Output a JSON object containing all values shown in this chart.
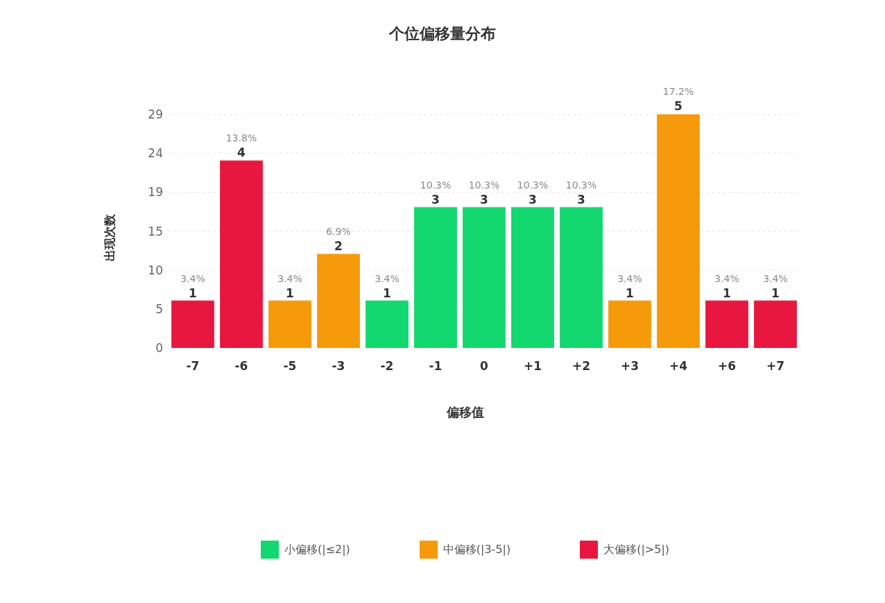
{
  "chart_data": {
    "type": "bar",
    "title": "个位偏移量分布",
    "xlabel": "偏移值",
    "ylabel": "出现次数",
    "categories": [
      "-7",
      "-6",
      "-5",
      "-3",
      "-2",
      "-1",
      "0",
      "+1",
      "+2",
      "+3",
      "+4",
      "+6",
      "+7"
    ],
    "stacked": true,
    "series": [
      {
        "name": "小偏移(|≤2|)",
        "color": "#12d86f",
        "values": [
          null,
          null,
          null,
          null,
          5.8,
          17.4,
          17.4,
          17.4,
          17.4,
          null,
          null,
          null,
          null
        ]
      },
      {
        "name": "中偏移(|3-5|)",
        "color": "#f59a0a",
        "values": [
          null,
          null,
          5.8,
          11.6,
          null,
          null,
          null,
          null,
          null,
          5.8,
          29,
          null,
          null
        ]
      },
      {
        "name": "大偏移(|>5|)",
        "color": "#e8173f",
        "values": [
          5.8,
          23.2,
          null,
          null,
          null,
          null,
          null,
          null,
          null,
          null,
          null,
          5.8,
          5.8
        ]
      }
    ],
    "annotations": [
      {
        "text": "1",
        "x": "-7",
        "y": 5.8
      },
      {
        "text": "3.4%",
        "x": "-7",
        "y": 5.8
      },
      {
        "text": "4",
        "x": "-6",
        "y": 23.2
      },
      {
        "text": "13.8%",
        "x": "-6",
        "y": 23.2
      },
      {
        "text": "1",
        "x": "-5",
        "y": 5.8
      },
      {
        "text": "3.4%",
        "x": "-5",
        "y": 5.8
      },
      {
        "text": "2",
        "x": "-3",
        "y": 11.6
      },
      {
        "text": "6.9%",
        "x": "-3",
        "y": 11.6
      },
      {
        "text": "1",
        "x": "-2",
        "y": 5.8
      },
      {
        "text": "3.4%",
        "x": "-2",
        "y": 5.8
      },
      {
        "text": "3",
        "x": "-1",
        "y": 17.4
      },
      {
        "text": "10.3%",
        "x": "-1",
        "y": 17.4
      },
      {
        "text": "3",
        "x": "0",
        "y": 17.4
      },
      {
        "text": "10.3%",
        "x": "0",
        "y": 17.4
      },
      {
        "text": "3",
        "x": "+1",
        "y": 17.4
      },
      {
        "text": "10.3%",
        "x": "+1",
        "y": 17.4
      },
      {
        "text": "3",
        "x": "+2",
        "y": 17.4
      },
      {
        "text": "10.3%",
        "x": "+2",
        "y": 17.4
      },
      {
        "text": "1",
        "x": "+3",
        "y": 5.8
      },
      {
        "text": "3.4%",
        "x": "+3",
        "y": 5.8
      },
      {
        "text": "5",
        "x": "+4",
        "y": 29
      },
      {
        "text": "17.2%",
        "x": "+4",
        "y": 29
      },
      {
        "text": "1",
        "x": "+6",
        "y": 5.8
      },
      {
        "text": "3.4%",
        "x": "+6",
        "y": 5.8
      },
      {
        "text": "1",
        "x": "+7",
        "y": 5.8
      },
      {
        "text": "3.4%",
        "x": "+7",
        "y": 5.8
      }
    ],
    "ylim": [
      0,
      29
    ],
    "yticks": [
      0,
      {
        "value": 4.83,
        "label": "5"
      },
      {
        "value": 9.67,
        "label": "10"
      },
      {
        "value": 14.5,
        "label": "15"
      },
      {
        "value": 19.33,
        "label": "19"
      },
      {
        "value": 24.17,
        "label": "24"
      },
      29
    ],
    "grid": "y",
    "legend": "bottom"
  }
}
